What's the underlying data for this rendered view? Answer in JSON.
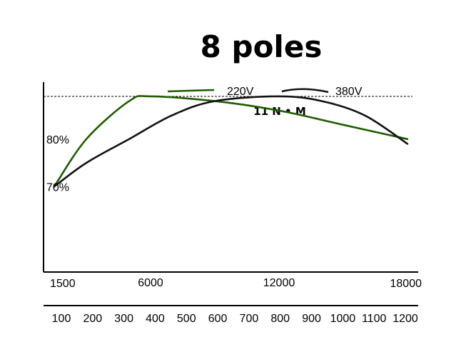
{
  "chart_data": {
    "type": "line",
    "title": "8 poles",
    "legend_position": "top",
    "grid": false,
    "series": [
      {
        "name": "220V",
        "color": "#1f5c00",
        "points": [
          [
            1500,
            70
          ],
          [
            3000,
            80
          ],
          [
            5000,
            88
          ],
          [
            6000,
            89
          ],
          [
            9000,
            88
          ],
          [
            12000,
            86
          ],
          [
            15000,
            83
          ],
          [
            18000,
            80
          ]
        ]
      },
      {
        "name": "380V",
        "color": "#111111",
        "points": [
          [
            1500,
            70
          ],
          [
            3000,
            75
          ],
          [
            5000,
            80
          ],
          [
            7000,
            85
          ],
          [
            9000,
            88
          ],
          [
            12000,
            89
          ],
          [
            14000,
            88
          ],
          [
            16000,
            85
          ],
          [
            18000,
            79
          ]
        ]
      }
    ],
    "x_ticks_rpm": [
      1500,
      6000,
      12000,
      18000
    ],
    "x_ticks_secondary": [
      "100",
      "200",
      "300",
      "400",
      "500",
      "600",
      "700",
      "800",
      "900",
      "1000",
      "1100",
      "1200"
    ],
    "y_ticks": [
      {
        "value": 70,
        "label": "70%"
      },
      {
        "value": 80,
        "label": "80%"
      }
    ],
    "reference_line": {
      "y": 89,
      "label": "11 N • M"
    },
    "xlim": [
      1000,
      18500
    ],
    "ylim": [
      52,
      92
    ]
  }
}
